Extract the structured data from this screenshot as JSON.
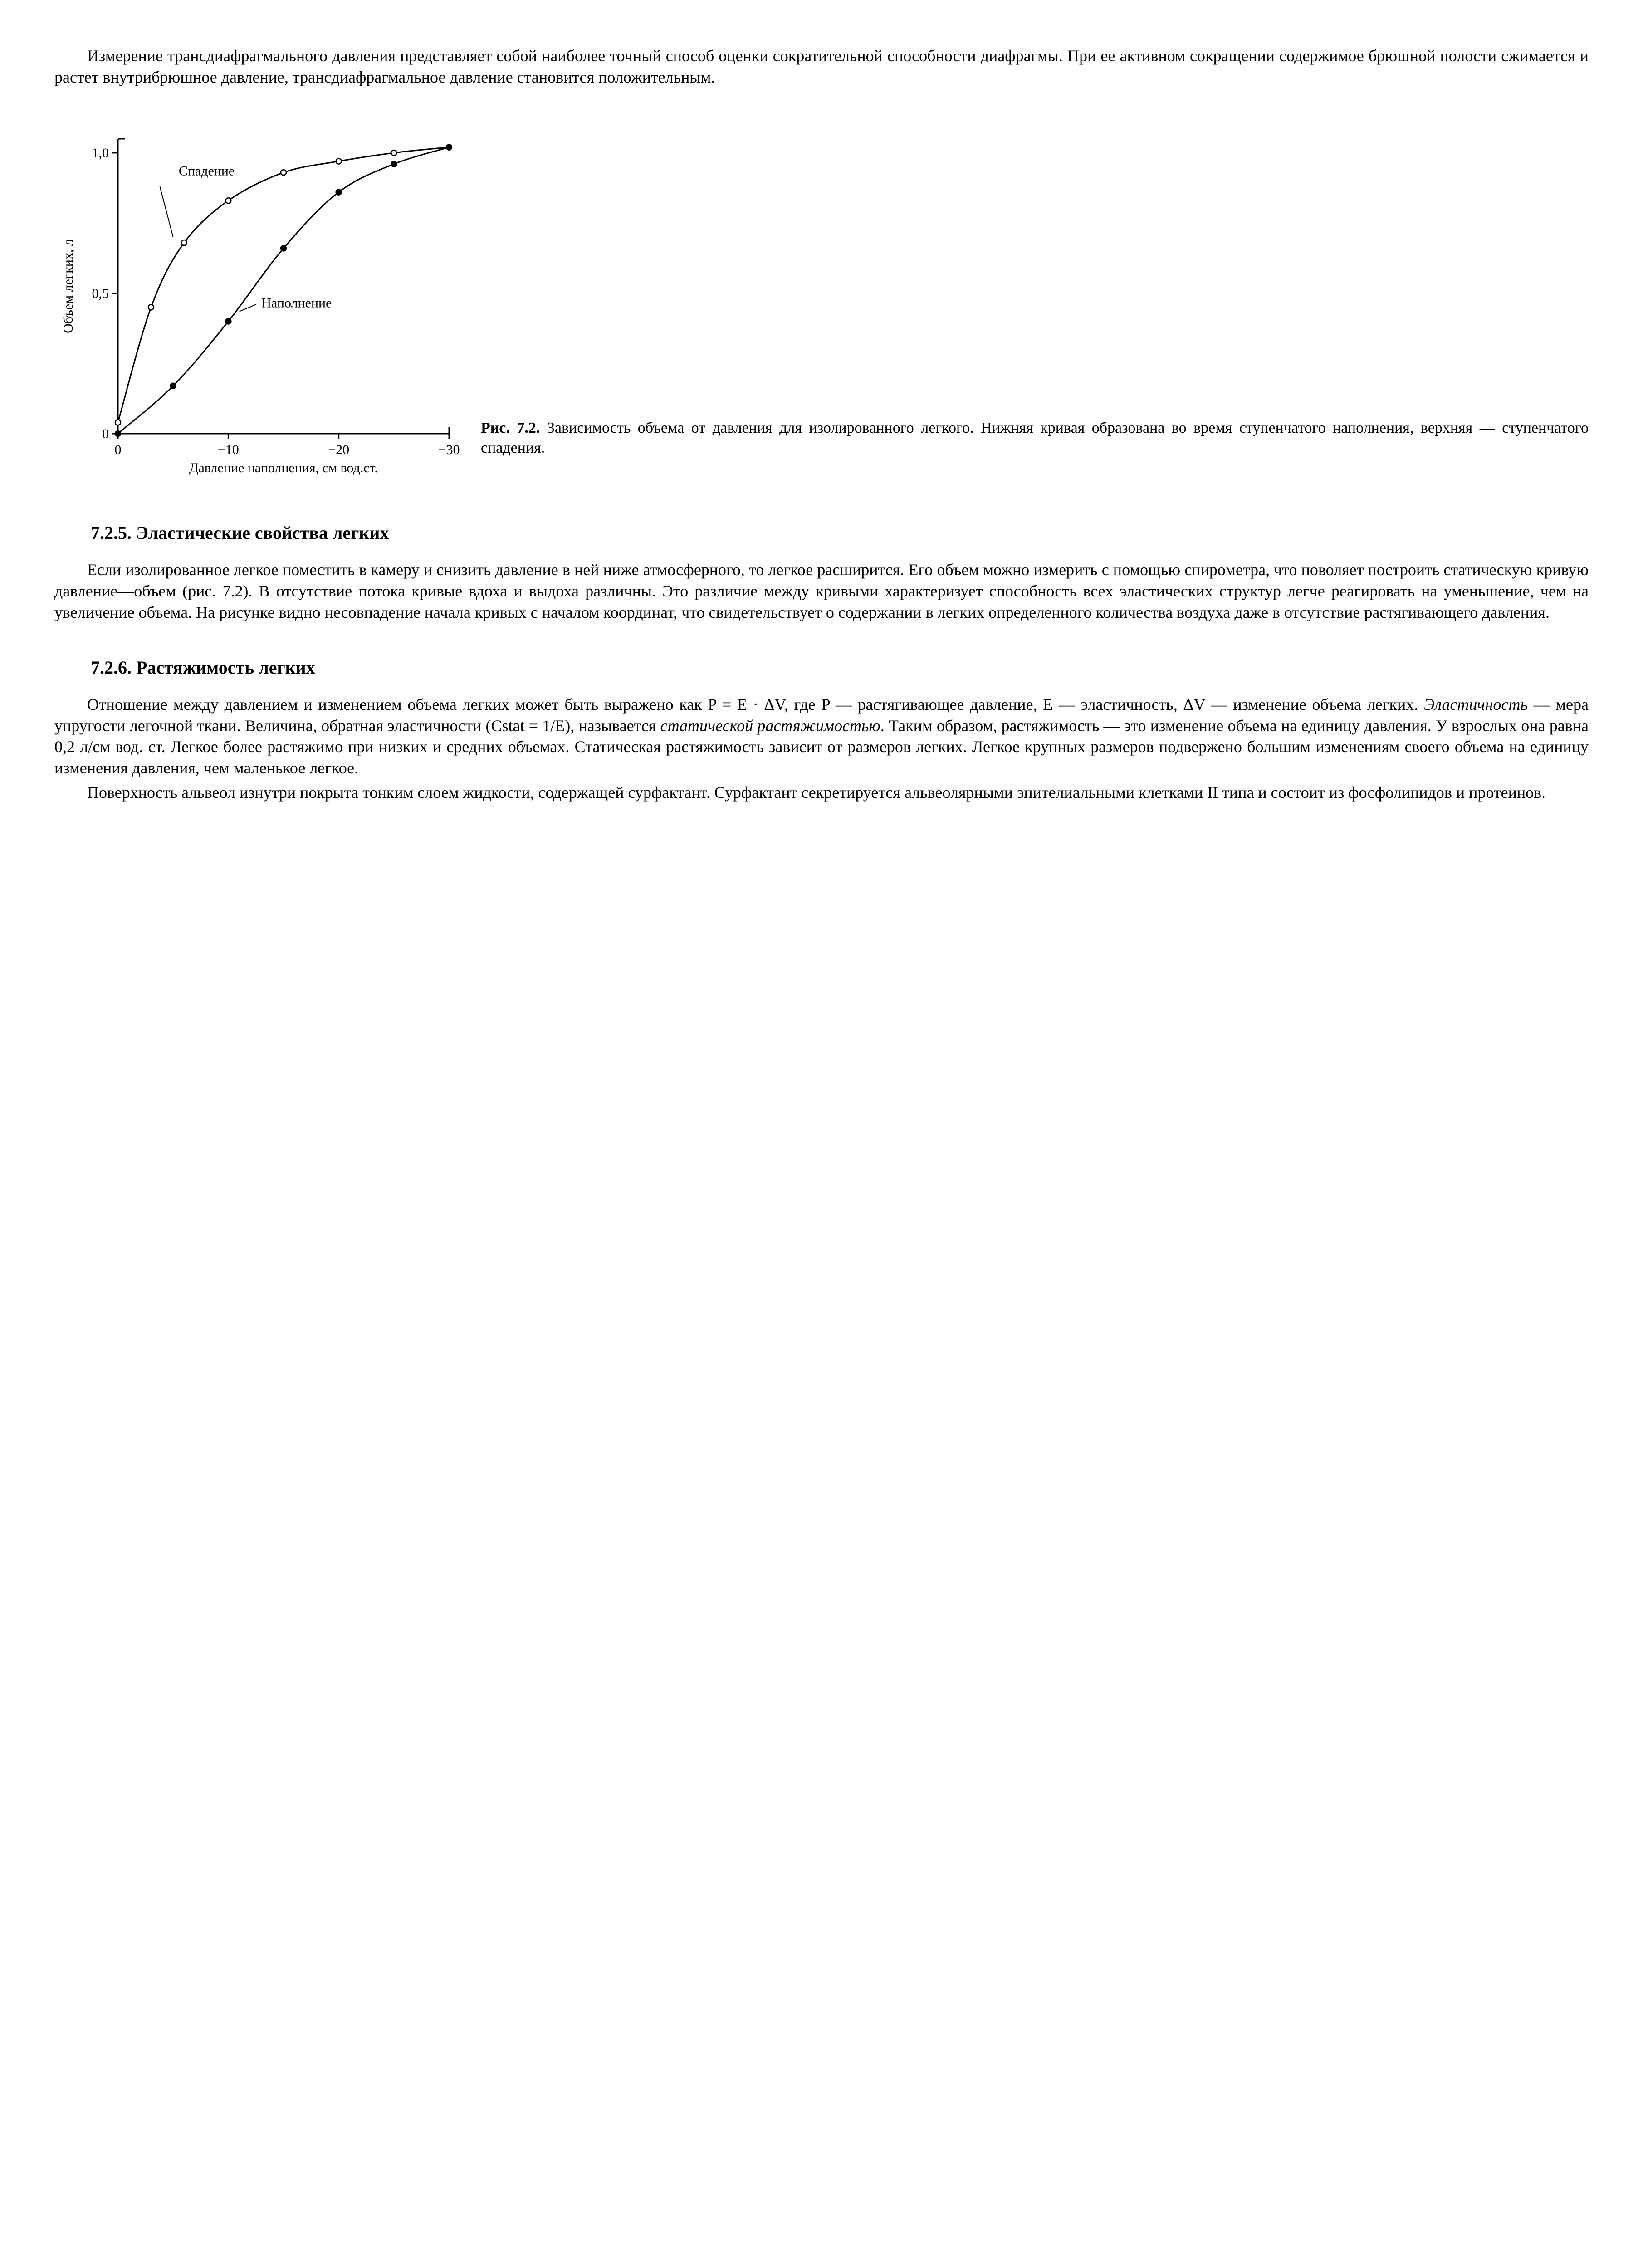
{
  "para1": "Измерение трансдиафрагмального давления представляет собой наиболее точный способ оценки сократительной способности диафрагмы. При ее активном сокращении содержимое брюшной полости сжимается и растет внутрибрюшное давление, трансдиафрагмальное давление становится положительным.",
  "figure": {
    "ylabel": "Объем легких, л",
    "xlabel": "Давление наполнения, см вод.ст.",
    "label_upper": "Спадение",
    "label_lower": "Наполнение",
    "xticks": [
      "0",
      "−10",
      "−20",
      "−30"
    ],
    "yticks": [
      "0",
      "0,5",
      "1,0"
    ],
    "xlim": [
      0,
      30
    ],
    "ylim": [
      0,
      1.05
    ],
    "curve_deflation": {
      "x": [
        0,
        3,
        6,
        10,
        15,
        20,
        25,
        30
      ],
      "y": [
        0.04,
        0.45,
        0.68,
        0.83,
        0.93,
        0.97,
        1.0,
        1.02
      ],
      "marker": "open-circle"
    },
    "curve_inflation": {
      "x": [
        0,
        5,
        10,
        15,
        20,
        25,
        30
      ],
      "y": [
        0.0,
        0.17,
        0.4,
        0.66,
        0.86,
        0.96,
        1.02
      ],
      "marker": "filled-circle"
    },
    "marker_radius": 6,
    "line_color": "#000000",
    "line_width": 3,
    "axis_color": "#000000",
    "axis_width": 3,
    "tick_fontsize": 30,
    "label_fontsize": 30,
    "annot_fontsize": 30,
    "background": "#ffffff",
    "caption_prefix": "Рис. 7.2.",
    "caption": " Зависимость объема от давления для изолированного легкого. Нижняя кривая образована во время ступенчатого наполнения, верхняя — ступенчатого спадения."
  },
  "heading725": "7.2.5. Эластические свойства легких",
  "para725": "Если изолированное легкое поместить в камеру и снизить давление в ней ниже атмосферного, то легкое расширится. Его объем можно измерить с помощью спирометра, что поволяет построить статическую кривую давление—объем (рис. 7.2). В отсутствие потока кривые вдоха и выдоха различны. Это различие между кривыми характеризует способность всех эластических структур легче реагировать на уменьшение, чем на увеличение объема. На рисунке видно несовпадение начала кривых с началом координат, что свидетельствует о содержании в легких определенного количества воздуха даже в отсутствие растягивающего давления.",
  "heading726": "7.2.6. Растяжимость легких",
  "para726a_parts": {
    "t1": "Отношение между давлением и изменением объема легких может быть выражено как P = E · ΔV, где P — растягивающее давление, E — эластичность, ΔV — изменение объема легких. ",
    "i1": "Эластичность",
    "t2": " — мера упругости легочной ткани. Величина, обратная эластичности (Cstat = 1/E), называется ",
    "i2": "статической растяжимостью",
    "t3": ". Таким образом, растяжимость — это изменение объема на единицу давления. У взрослых она равна 0,2 л/см вод. ст. Легкое более растяжимо при низких и средних объемах. Статическая растяжимость зависит от размеров легких. Легкое крупных размеров подвержено большим изменениям своего объема на единицу изменения давления, чем маленькое легкое."
  },
  "para726b": "Поверхность альвеол изнутри покрыта тонким слоем жидкости, содержащей сурфактант. Сурфактант секретируется альвеолярными эпителиальными клетками II типа и состоит из фосфолипидов и протеинов."
}
